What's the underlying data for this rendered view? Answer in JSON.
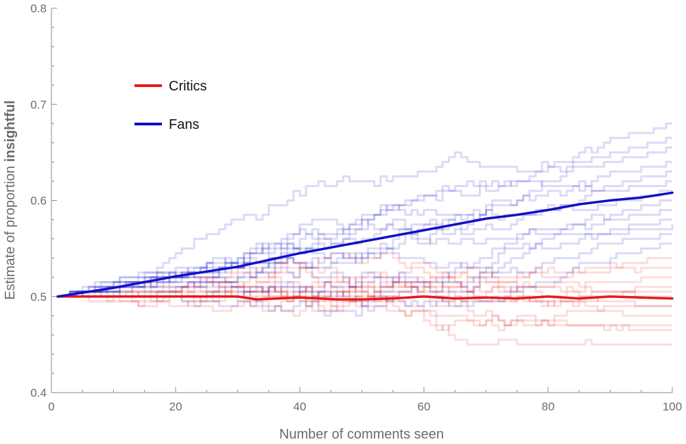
{
  "chart_data": {
    "type": "line",
    "xlabel": "Number of comments seen",
    "ylabel_prefix": "Estimate of proportion ",
    "ylabel_bold": "insightful",
    "xlim": [
      0,
      100
    ],
    "ylim": [
      0.4,
      0.8
    ],
    "x_ticks": [
      0,
      20,
      40,
      60,
      80,
      100
    ],
    "x_tick_labels": [
      "0",
      "20",
      "40",
      "60",
      "80",
      "100"
    ],
    "y_ticks": [
      0.4,
      0.5,
      0.6,
      0.7,
      0.8
    ],
    "y_tick_labels": [
      "0.4",
      "0.5",
      "0.6",
      "0.7",
      "0.8"
    ],
    "grid": false,
    "legend_position": "top-left",
    "series": [
      {
        "name": "Critics",
        "color": "#e41a1c",
        "x": [
          1,
          10,
          20,
          30,
          33,
          40,
          46,
          50,
          55,
          60,
          65,
          70,
          75,
          80,
          85,
          90,
          95,
          100
        ],
        "values": [
          0.5,
          0.5,
          0.5,
          0.5,
          0.497,
          0.499,
          0.497,
          0.497,
          0.498,
          0.5,
          0.498,
          0.499,
          0.498,
          0.5,
          0.498,
          0.5,
          0.499,
          0.498
        ]
      },
      {
        "name": "Fans",
        "color": "#1010c8",
        "x": [
          1,
          10,
          20,
          30,
          40,
          50,
          55,
          60,
          65,
          70,
          75,
          80,
          85,
          90,
          95,
          100
        ],
        "values": [
          0.5,
          0.509,
          0.521,
          0.531,
          0.545,
          0.557,
          0.563,
          0.569,
          0.575,
          0.581,
          0.585,
          0.59,
          0.596,
          0.6,
          0.603,
          0.608
        ]
      }
    ],
    "simulated_runs": {
      "description": "Faint individual trajectories; critic runs end between 0.45 and 0.54, fan runs end between 0.56 and 0.68",
      "critic_run_endpoints": [
        0.45,
        0.463,
        0.47,
        0.48,
        0.488,
        0.492,
        0.498,
        0.505,
        0.512,
        0.52,
        0.53,
        0.54
      ],
      "fan_run_endpoints": [
        0.555,
        0.565,
        0.573,
        0.58,
        0.59,
        0.6,
        0.61,
        0.62,
        0.63,
        0.64,
        0.654,
        0.665,
        0.68
      ]
    }
  }
}
